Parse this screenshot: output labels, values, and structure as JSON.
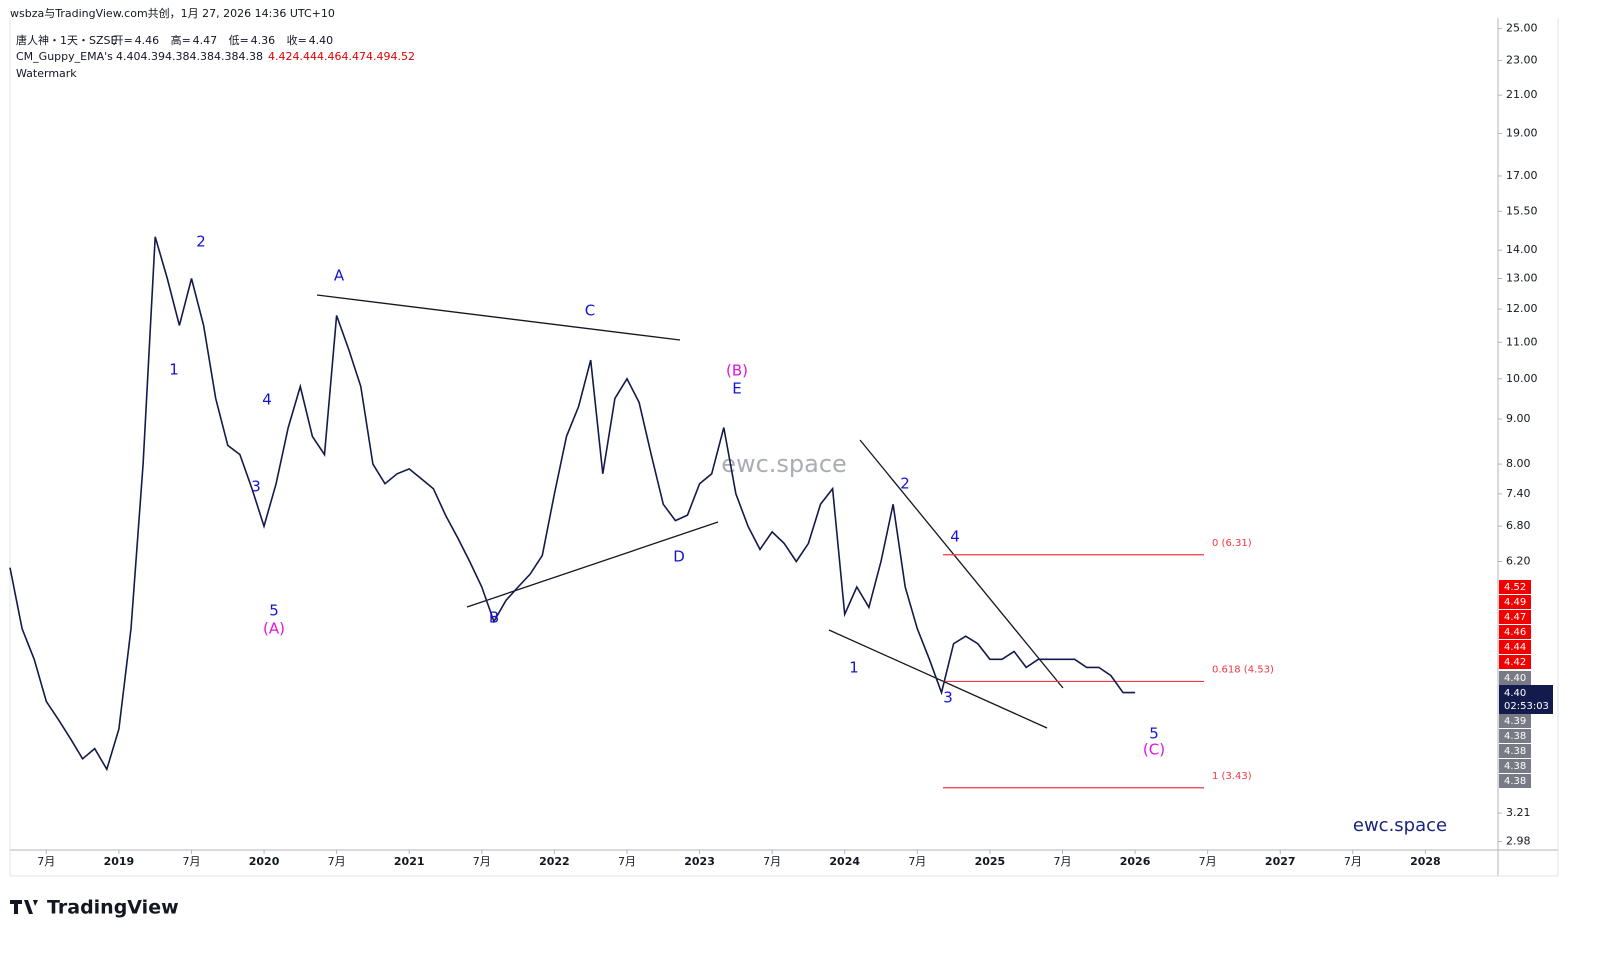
{
  "header": {
    "caption": "wsbza与TradingView.com共创，1月 27, 2026 14:36 UTC+10",
    "symbol": "唐人神・1天・SZSE",
    "ohlc": [
      {
        "label": "开=",
        "value": "4.46"
      },
      {
        "label": "高=",
        "value": "4.47"
      },
      {
        "label": "低=",
        "value": "4.36"
      },
      {
        "label": "收=",
        "value": "4.40"
      }
    ],
    "indicator": "CM_Guppy_EMA's",
    "ema_short": [
      "4.40",
      "4.39",
      "4.38",
      "4.38",
      "4.38",
      "4.38"
    ],
    "ema_long": [
      "4.42",
      "4.44",
      "4.46",
      "4.47",
      "4.49",
      "4.52"
    ],
    "watermark_label": "Watermark",
    "countdown": "02:53:03",
    "brand": "TradingView"
  },
  "chart_data": {
    "type": "line",
    "log_scale": true,
    "color": "#131a4c",
    "x": [
      "2018-04",
      "2018-05",
      "2018-06",
      "2018-07",
      "2018-08",
      "2018-09",
      "2018-10",
      "2018-11",
      "2018-12",
      "2019-01",
      "2019-02",
      "2019-03",
      "2019-04",
      "2019-05",
      "2019-06",
      "2019-07",
      "2019-08",
      "2019-09",
      "2019-10",
      "2019-11",
      "2019-12",
      "2020-01",
      "2020-02",
      "2020-03",
      "2020-04",
      "2020-05",
      "2020-06",
      "2020-07",
      "2020-08",
      "2020-09",
      "2020-10",
      "2020-11",
      "2020-12",
      "2021-01",
      "2021-02",
      "2021-03",
      "2021-04",
      "2021-05",
      "2021-06",
      "2021-07",
      "2021-08",
      "2021-09",
      "2021-10",
      "2021-11",
      "2021-12",
      "2022-01",
      "2022-02",
      "2022-03",
      "2022-04",
      "2022-05",
      "2022-06",
      "2022-07",
      "2022-08",
      "2022-09",
      "2022-10",
      "2022-11",
      "2022-12",
      "2023-01",
      "2023-02",
      "2023-03",
      "2023-04",
      "2023-05",
      "2023-06",
      "2023-07",
      "2023-08",
      "2023-09",
      "2023-10",
      "2023-11",
      "2023-12",
      "2024-01",
      "2024-02",
      "2024-03",
      "2024-04",
      "2024-05",
      "2024-06",
      "2024-07",
      "2024-08",
      "2024-09",
      "2024-10",
      "2024-11",
      "2024-12",
      "2025-01",
      "2025-02",
      "2025-03",
      "2025-04",
      "2025-05",
      "2025-06",
      "2025-07",
      "2025-08",
      "2025-09",
      "2025-10",
      "2025-11",
      "2025-12",
      "2026-01"
    ],
    "values": [
      6.1,
      5.2,
      4.8,
      4.3,
      4.1,
      3.9,
      3.7,
      3.8,
      3.6,
      4.0,
      5.2,
      8.0,
      14.5,
      13.0,
      11.5,
      13.0,
      11.5,
      9.5,
      8.4,
      8.2,
      7.5,
      6.8,
      7.6,
      8.8,
      9.8,
      8.6,
      8.2,
      11.8,
      10.8,
      9.8,
      8.0,
      7.6,
      7.8,
      7.9,
      7.7,
      7.5,
      7.0,
      6.6,
      6.2,
      5.8,
      5.3,
      5.6,
      5.8,
      6.0,
      6.3,
      7.4,
      8.6,
      9.3,
      10.5,
      7.8,
      9.5,
      10.0,
      9.4,
      8.2,
      7.2,
      6.9,
      7.0,
      7.6,
      7.8,
      8.8,
      7.4,
      6.8,
      6.4,
      6.7,
      6.5,
      6.2,
      6.5,
      7.2,
      7.5,
      5.4,
      5.8,
      5.5,
      6.2,
      7.2,
      5.8,
      5.2,
      4.8,
      4.4,
      5.0,
      5.1,
      5.0,
      4.8,
      4.8,
      4.9,
      4.7,
      4.8,
      4.8,
      4.8,
      4.8,
      4.7,
      4.7,
      4.6,
      4.4,
      4.4
    ],
    "xlim": [
      "2018-04",
      "2028-07"
    ],
    "xticks": [
      {
        "value": "2018-07",
        "label": "7月"
      },
      {
        "value": "2019-01",
        "label": "2019"
      },
      {
        "value": "2019-07",
        "label": "7月"
      },
      {
        "value": "2020-01",
        "label": "2020"
      },
      {
        "value": "2020-07",
        "label": "7月"
      },
      {
        "value": "2021-01",
        "label": "2021"
      },
      {
        "value": "2021-07",
        "label": "7月"
      },
      {
        "value": "2022-01",
        "label": "2022"
      },
      {
        "value": "2022-07",
        "label": "7月"
      },
      {
        "value": "2023-01",
        "label": "2023"
      },
      {
        "value": "2023-07",
        "label": "7月"
      },
      {
        "value": "2024-01",
        "label": "2024"
      },
      {
        "value": "2024-07",
        "label": "7月"
      },
      {
        "value": "2025-01",
        "label": "2025"
      },
      {
        "value": "2025-07",
        "label": "7月"
      },
      {
        "value": "2026-01",
        "label": "2026"
      },
      {
        "value": "2026-07",
        "label": "7月"
      },
      {
        "value": "2027-01",
        "label": "2027"
      },
      {
        "value": "2027-07",
        "label": "7月"
      },
      {
        "value": "2028-01",
        "label": "2028"
      }
    ],
    "ylim": [
      2.93,
      25.7
    ],
    "yticks": [
      {
        "value": 25,
        "label": "25.00"
      },
      {
        "value": 23,
        "label": "23.00"
      },
      {
        "value": 21,
        "label": "21.00"
      },
      {
        "value": 19,
        "label": "19.00"
      },
      {
        "value": 17,
        "label": "17.00"
      },
      {
        "value": 15.5,
        "label": "15.50"
      },
      {
        "value": 14,
        "label": "14.00"
      },
      {
        "value": 13,
        "label": "13.00"
      },
      {
        "value": 12,
        "label": "12.00"
      },
      {
        "value": 11,
        "label": "11.00"
      },
      {
        "value": 10,
        "label": "10.00"
      },
      {
        "value": 9,
        "label": "9.00"
      },
      {
        "value": 8,
        "label": "8.00"
      },
      {
        "value": 7.4,
        "label": "7.40"
      },
      {
        "value": 6.8,
        "label": "6.80"
      },
      {
        "value": 6.2,
        "label": "6.20"
      },
      3.21,
      2.98
    ],
    "fib_levels": [
      {
        "value": 6.31,
        "label": "0 (6.31)"
      },
      {
        "value": 4.53,
        "label": "0.618 (4.53)"
      },
      {
        "value": 3.43,
        "label": "1 (3.43)"
      }
    ],
    "annotations": [
      {
        "text": "1",
        "color": "#1414d4"
      },
      {
        "text": "2",
        "color": "#1414d4"
      },
      {
        "text": "3",
        "color": "#1414d4"
      },
      {
        "text": "4",
        "color": "#1414d4"
      },
      {
        "text": "5",
        "color": "#1414d4"
      },
      {
        "text": "(A)",
        "color": "#e014e0"
      },
      {
        "text": "A",
        "color": "#1414d4"
      },
      {
        "text": "B",
        "color": "#1414d4"
      },
      {
        "text": "C",
        "color": "#1414d4"
      },
      {
        "text": "D",
        "color": "#1414d4"
      },
      {
        "text": "(B)",
        "color": "#e014e0"
      },
      {
        "text": "E",
        "color": "#1414d4"
      },
      {
        "text": "1",
        "color": "#1414d4"
      },
      {
        "text": "2",
        "color": "#1414d4"
      },
      {
        "text": "3",
        "color": "#1414d4"
      },
      {
        "text": "4",
        "color": "#1414d4"
      },
      {
        "text": "5",
        "color": "#1414d4"
      },
      {
        "text": "(C)",
        "color": "#e014e0"
      }
    ],
    "watermark": "ewc.space"
  }
}
